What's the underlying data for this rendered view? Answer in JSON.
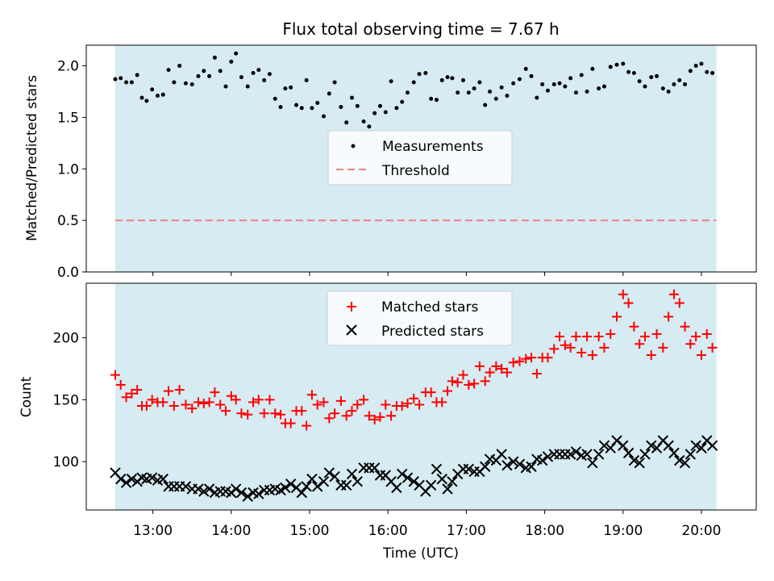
{
  "title": "Flux total observing time = 7.67 h",
  "colors": {
    "shade": "#add8e6",
    "threshold": "#f08080",
    "matched": "#ff0000",
    "predicted": "#000000",
    "measurements": "#000000"
  },
  "chart_data": [
    {
      "type": "scatter",
      "panel": "top",
      "title": "Flux total observing time = 7.67 h",
      "xlabel": "",
      "ylabel": "Matched/Predicted stars",
      "xlim_hours": [
        12.15,
        20.7
      ],
      "ylim": [
        0,
        2.2
      ],
      "yticks": [
        "0.0",
        "0.5",
        "1.0",
        "1.5",
        "2.0"
      ],
      "threshold": 0.5,
      "legend": {
        "placement": "center",
        "entries": [
          "Measurements",
          "Threshold"
        ]
      },
      "observing_window_hours": [
        12.52,
        20.19
      ],
      "series": [
        {
          "name": "Measurements",
          "x_hours": [
            12.52,
            12.59,
            12.66,
            12.73,
            12.8,
            12.86,
            12.92,
            12.99,
            13.06,
            13.13,
            13.2,
            13.27,
            13.34,
            13.42,
            13.5,
            13.58,
            13.65,
            13.72,
            13.79,
            13.86,
            13.93,
            14.0,
            14.06,
            14.13,
            14.21,
            14.28,
            14.35,
            14.42,
            14.49,
            14.56,
            14.63,
            14.69,
            14.76,
            14.83,
            14.9,
            14.96,
            15.03,
            15.1,
            15.18,
            15.25,
            15.32,
            15.4,
            15.47,
            15.54,
            15.61,
            15.69,
            15.76,
            15.83,
            15.9,
            15.97,
            16.04,
            16.11,
            16.18,
            16.25,
            16.33,
            16.4,
            16.48,
            16.55,
            16.62,
            16.69,
            16.76,
            16.82,
            16.89,
            16.96,
            17.03,
            17.1,
            17.17,
            17.24,
            17.3,
            17.38,
            17.45,
            17.52,
            17.6,
            17.68,
            17.76,
            17.83,
            17.9,
            17.97,
            18.04,
            18.12,
            18.19,
            18.26,
            18.33,
            18.4,
            18.47,
            18.54,
            18.61,
            18.69,
            18.76,
            18.84,
            18.92,
            19.0,
            19.07,
            19.14,
            19.21,
            19.28,
            19.36,
            19.43,
            19.51,
            19.58,
            19.65,
            19.72,
            19.79,
            19.86,
            19.93,
            20.0,
            20.07,
            20.14
          ],
          "values": [
            1.87,
            1.88,
            1.84,
            1.84,
            1.91,
            1.69,
            1.66,
            1.77,
            1.71,
            1.72,
            1.96,
            1.84,
            2.0,
            1.83,
            1.82,
            1.9,
            1.95,
            1.9,
            2.08,
            1.95,
            1.8,
            2.04,
            2.12,
            1.89,
            1.8,
            1.93,
            1.96,
            1.86,
            1.92,
            1.68,
            1.6,
            1.78,
            1.79,
            1.62,
            1.59,
            1.86,
            1.59,
            1.64,
            1.51,
            1.73,
            1.84,
            1.6,
            1.45,
            1.69,
            1.61,
            1.46,
            1.41,
            1.54,
            1.61,
            1.55,
            1.85,
            1.59,
            1.65,
            1.74,
            1.84,
            1.92,
            1.93,
            1.68,
            1.67,
            1.86,
            1.89,
            1.88,
            1.74,
            1.86,
            1.74,
            1.78,
            1.84,
            1.62,
            1.75,
            1.68,
            1.79,
            1.71,
            1.83,
            1.87,
            1.97,
            1.9,
            1.69,
            1.82,
            1.76,
            1.82,
            1.83,
            1.8,
            1.88,
            1.74,
            1.91,
            1.75,
            1.97,
            1.78,
            1.8,
            1.99,
            2.01,
            2.02,
            1.94,
            1.93,
            1.85,
            1.8,
            1.89,
            1.9,
            1.78,
            1.75,
            1.82,
            1.86,
            1.82,
            1.95,
            2.0,
            2.02,
            1.94,
            1.93
          ]
        }
      ]
    },
    {
      "type": "scatter",
      "panel": "bottom",
      "xlabel": "Time (UTC)",
      "ylabel": "Count",
      "xlim_hours": [
        12.15,
        20.7
      ],
      "ylim": [
        61,
        244
      ],
      "yticks": [
        "100",
        "150",
        "200"
      ],
      "xticks": [
        "13:00",
        "14:00",
        "15:00",
        "16:00",
        "17:00",
        "18:00",
        "19:00",
        "20:00"
      ],
      "legend": {
        "placement": "top-center",
        "entries": [
          "Matched stars",
          "Predicted stars"
        ]
      },
      "observing_window_hours": [
        12.52,
        20.19
      ],
      "series": [
        {
          "name": "Matched stars",
          "marker": "plus",
          "x_hours": [
            12.52,
            12.59,
            12.66,
            12.73,
            12.8,
            12.86,
            12.92,
            12.99,
            13.06,
            13.13,
            13.2,
            13.27,
            13.34,
            13.42,
            13.5,
            13.58,
            13.65,
            13.72,
            13.79,
            13.86,
            13.93,
            14.0,
            14.06,
            14.13,
            14.21,
            14.28,
            14.35,
            14.42,
            14.49,
            14.56,
            14.63,
            14.69,
            14.76,
            14.83,
            14.9,
            14.96,
            15.03,
            15.1,
            15.18,
            15.25,
            15.32,
            15.4,
            15.47,
            15.54,
            15.61,
            15.69,
            15.76,
            15.83,
            15.9,
            15.97,
            16.04,
            16.11,
            16.18,
            16.25,
            16.33,
            16.4,
            16.48,
            16.55,
            16.62,
            16.69,
            16.76,
            16.82,
            16.89,
            16.96,
            17.03,
            17.1,
            17.17,
            17.24,
            17.3,
            17.38,
            17.45,
            17.52,
            17.6,
            17.68,
            17.76,
            17.83,
            17.9,
            17.97,
            18.04,
            18.12,
            18.19,
            18.26,
            18.33,
            18.4,
            18.47,
            18.54,
            18.61,
            18.69,
            18.76,
            18.84,
            18.92,
            19.0,
            19.07,
            19.14,
            19.21,
            19.28,
            19.36,
            19.43,
            19.51,
            19.58,
            19.65,
            19.72,
            19.79,
            19.86,
            19.93,
            20.0,
            20.07,
            20.14
          ],
          "values": [
            170,
            162,
            152,
            155,
            158,
            145,
            145,
            150,
            148,
            148,
            157,
            145,
            158,
            146,
            143,
            148,
            147,
            148,
            156,
            146,
            141,
            153,
            150,
            139,
            138,
            148,
            150,
            139,
            150,
            139,
            138,
            131,
            131,
            141,
            141,
            129,
            154,
            146,
            148,
            135,
            139,
            149,
            137,
            141,
            146,
            150,
            137,
            134,
            136,
            146,
            137,
            145,
            145,
            147,
            151,
            146,
            156,
            156,
            148,
            148,
            157,
            165,
            164,
            170,
            162,
            163,
            177,
            165,
            172,
            177,
            175,
            172,
            180,
            181,
            183,
            184,
            171,
            184,
            184,
            191,
            201,
            194,
            192,
            201,
            188,
            201,
            186,
            201,
            192,
            203,
            217,
            235,
            228,
            209,
            195,
            201,
            186,
            203,
            192,
            217,
            235,
            228,
            209,
            195,
            201,
            186,
            203,
            192
          ]
        },
        {
          "name": "Predicted stars",
          "marker": "x",
          "x_hours": [
            12.52,
            12.59,
            12.66,
            12.73,
            12.8,
            12.86,
            12.92,
            12.99,
            13.06,
            13.13,
            13.2,
            13.27,
            13.34,
            13.42,
            13.5,
            13.58,
            13.65,
            13.72,
            13.79,
            13.86,
            13.93,
            14.0,
            14.06,
            14.13,
            14.21,
            14.28,
            14.35,
            14.42,
            14.49,
            14.56,
            14.63,
            14.69,
            14.76,
            14.83,
            14.9,
            14.96,
            15.03,
            15.1,
            15.18,
            15.25,
            15.32,
            15.4,
            15.47,
            15.54,
            15.61,
            15.69,
            15.76,
            15.83,
            15.9,
            15.97,
            16.04,
            16.11,
            16.18,
            16.25,
            16.33,
            16.4,
            16.48,
            16.55,
            16.62,
            16.69,
            16.76,
            16.82,
            16.89,
            16.96,
            17.03,
            17.1,
            17.17,
            17.24,
            17.3,
            17.38,
            17.45,
            17.52,
            17.6,
            17.68,
            17.76,
            17.83,
            17.9,
            17.97,
            18.04,
            18.12,
            18.19,
            18.26,
            18.33,
            18.4,
            18.47,
            18.54,
            18.61,
            18.69,
            18.76,
            18.84,
            18.92,
            19.0,
            19.07,
            19.14,
            19.21,
            19.28,
            19.36,
            19.43,
            19.51,
            19.58,
            19.65,
            19.72,
            19.79,
            19.86,
            19.93,
            20.0,
            20.07,
            20.14
          ],
          "values": [
            91,
            86,
            83,
            86,
            84,
            87,
            86,
            87,
            85,
            86,
            80,
            80,
            80,
            80,
            78,
            78,
            76,
            78,
            75,
            76,
            76,
            75,
            78,
            75,
            72,
            75,
            74,
            77,
            77,
            78,
            77,
            79,
            82,
            79,
            75,
            80,
            86,
            80,
            84,
            91,
            88,
            81,
            81,
            90,
            84,
            95,
            95,
            95,
            89,
            89,
            84,
            79,
            90,
            87,
            84,
            81,
            76,
            81,
            94,
            86,
            78,
            84,
            90,
            94,
            94,
            92,
            92,
            96,
            102,
            101,
            106,
            97,
            100,
            98,
            95,
            96,
            102,
            101,
            104,
            106,
            106,
            106,
            106,
            108,
            105,
            106,
            99,
            106,
            113,
            111,
            117,
            113,
            107,
            101,
            99,
            106,
            113,
            111,
            117,
            113,
            107,
            101,
            99,
            106,
            113,
            111,
            117,
            113
          ]
        }
      ]
    }
  ]
}
